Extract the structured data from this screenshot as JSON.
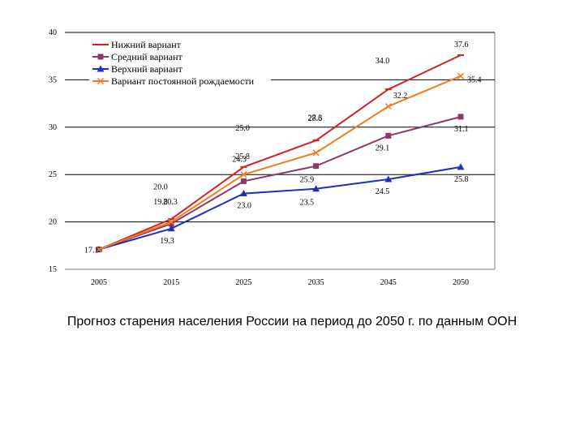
{
  "caption": "Прогноз старения населения России на период до 2050 г. по данным ООН",
  "chart_data": {
    "type": "line",
    "title": "",
    "xlabel": "",
    "ylabel": "",
    "categories": [
      "2005",
      "2015",
      "2025",
      "2035",
      "2045",
      "2050"
    ],
    "ylim": [
      15,
      40
    ],
    "yticks": [
      15,
      20,
      25,
      30,
      35,
      40
    ],
    "grid": "horizontal",
    "legend": "top-left",
    "series": [
      {
        "name": "Нижний вариант",
        "color": "#d42020",
        "marker": "dash",
        "values": [
          17.1,
          20.3,
          25.8,
          28.6,
          34.0,
          37.6
        ]
      },
      {
        "name": "Средний вариант",
        "color": "#8b3a6b",
        "marker": "square",
        "values": [
          17.1,
          19.8,
          24.3,
          25.9,
          29.1,
          31.1
        ]
      },
      {
        "name": "Верхний вариант",
        "color": "#1f2fbf",
        "marker": "triangle",
        "values": [
          17.1,
          19.3,
          23.0,
          23.5,
          24.5,
          25.8
        ]
      },
      {
        "name": "Вариант постоянной рождаемости",
        "color": "#f07d1a",
        "marker": "x",
        "values": [
          17.1,
          20.0,
          25.0,
          27.3,
          32.2,
          35.4
        ]
      }
    ]
  }
}
